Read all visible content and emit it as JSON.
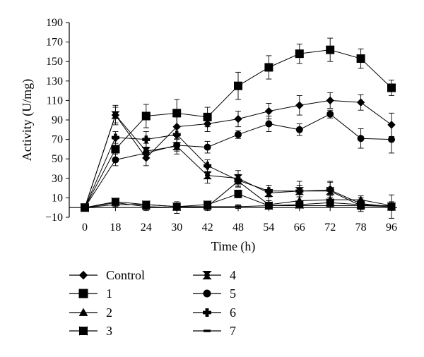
{
  "chart_data": {
    "type": "line",
    "title": "",
    "xlabel": "Time (h)",
    "ylabel": "Activity (U/mg)",
    "categories": [
      "0",
      "18",
      "24",
      "30",
      "42",
      "48",
      "54",
      "66",
      "72",
      "78",
      "96"
    ],
    "ylim": [
      -10,
      190
    ],
    "yticks": [
      -10,
      10,
      30,
      50,
      70,
      90,
      110,
      130,
      150,
      170,
      190
    ],
    "grid": false,
    "legend_position": "bottom",
    "series": [
      {
        "name": "Control",
        "marker": "diamond",
        "values": [
          0,
          95,
          51,
          83,
          86,
          91,
          99,
          105,
          110,
          108,
          85
        ],
        "error": [
          0,
          10,
          8,
          10,
          8,
          8,
          8,
          10,
          8,
          8,
          12
        ]
      },
      {
        "name": "1",
        "marker": "square",
        "values": [
          0,
          60,
          94,
          97,
          93,
          125,
          144,
          158,
          162,
          153,
          123
        ],
        "error": [
          0,
          10,
          12,
          14,
          10,
          14,
          12,
          10,
          12,
          10,
          8
        ]
      },
      {
        "name": "2",
        "marker": "triangle",
        "values": [
          0,
          5,
          1,
          0,
          1,
          27,
          3,
          7,
          8,
          8,
          2
        ],
        "error": [
          0,
          4,
          4,
          6,
          4,
          6,
          4,
          4,
          4,
          4,
          4
        ]
      },
      {
        "name": "3",
        "marker": "bowtie",
        "values": [
          0,
          6,
          3,
          1,
          3,
          14,
          2,
          3,
          5,
          3,
          1
        ],
        "error": [
          0,
          3,
          3,
          3,
          3,
          4,
          3,
          3,
          3,
          3,
          3
        ]
      },
      {
        "name": "4",
        "marker": "hourglass",
        "values": [
          0,
          95,
          58,
          63,
          33,
          30,
          15,
          17,
          17,
          2,
          1
        ],
        "error": [
          0,
          8,
          8,
          8,
          8,
          8,
          8,
          10,
          10,
          6,
          4
        ]
      },
      {
        "name": "5",
        "marker": "circle",
        "values": [
          0,
          49,
          56,
          64,
          62,
          75,
          86,
          80,
          96,
          71,
          70
        ],
        "error": [
          0,
          6,
          6,
          6,
          6,
          4,
          8,
          6,
          4,
          10,
          14
        ]
      },
      {
        "name": "6",
        "marker": "plus",
        "values": [
          0,
          72,
          70,
          75,
          43,
          28,
          17,
          17,
          18,
          4,
          1
        ],
        "error": [
          0,
          6,
          8,
          8,
          6,
          6,
          6,
          6,
          8,
          6,
          12
        ]
      },
      {
        "name": "7",
        "marker": "dash",
        "values": [
          0,
          3,
          3,
          1,
          1,
          1,
          2,
          2,
          2,
          2,
          2
        ],
        "error": [
          0,
          2,
          2,
          2,
          2,
          2,
          2,
          2,
          2,
          2,
          2
        ]
      }
    ]
  }
}
